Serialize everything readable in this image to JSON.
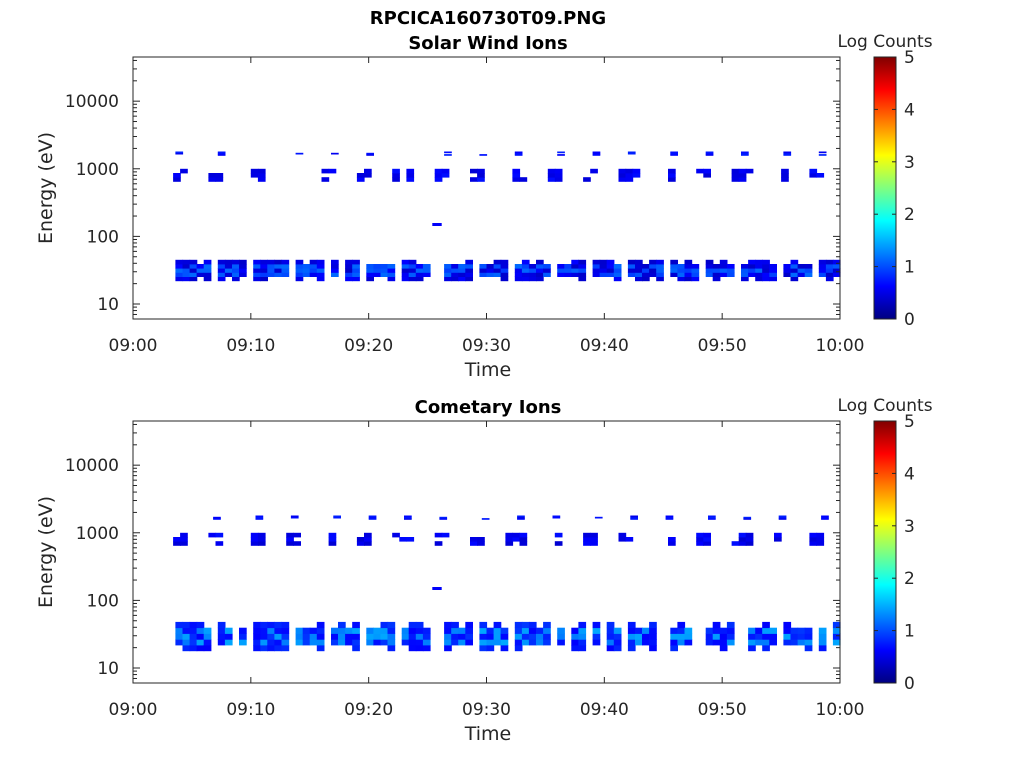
{
  "figure_title": "RPCICA160730T09.PNG",
  "chart_data": [
    {
      "type": "heatmap",
      "title": "Solar Wind Ions",
      "xlabel": "Time",
      "ylabel": "Energy (eV)",
      "xlim_minutes": [
        0,
        60
      ],
      "x_ticks": [
        "09:00",
        "09:10",
        "09:20",
        "09:30",
        "09:40",
        "09:50",
        "10:00"
      ],
      "y_scale": "log",
      "ylim": [
        6,
        45000
      ],
      "y_ticks": [
        "10",
        "100",
        "1000",
        "10000"
      ],
      "colorbar": {
        "label": "Log Counts",
        "range": [
          0,
          5
        ],
        "ticks": [
          "0",
          "1",
          "2",
          "3",
          "4",
          "5"
        ]
      },
      "bands": [
        {
          "name": "",
          "e_lo": 22,
          "e_hi": 45,
          "start": 3.6,
          "end": 59.6,
          "base": 0.35,
          "peak": 1.15
        },
        {
          "name": "",
          "e_lo": 650,
          "e_hi": 1000,
          "start": 2.8,
          "end": 59.2,
          "base": 0.4,
          "peak": 0.95
        },
        {
          "name": "",
          "e_lo": 1580,
          "e_hi": 1800,
          "start": 3.6,
          "end": 59.2,
          "base": 0.5,
          "peak": 0.7
        }
      ],
      "spots": [
        {
          "t": 25.8,
          "e": 150,
          "value": 0.6
        }
      ]
    },
    {
      "type": "heatmap",
      "title": "Cometary Ions",
      "xlabel": "Time",
      "ylabel": "Energy (eV)",
      "xlim_minutes": [
        0,
        60
      ],
      "x_ticks": [
        "09:00",
        "09:10",
        "09:20",
        "09:30",
        "09:40",
        "09:50",
        "10:00"
      ],
      "y_scale": "log",
      "ylim": [
        6,
        45000
      ],
      "y_ticks": [
        "10",
        "100",
        "1000",
        "10000"
      ],
      "colorbar": {
        "label": "Log Counts",
        "range": [
          0,
          5
        ],
        "ticks": [
          "0",
          "1",
          "2",
          "3",
          "4",
          "5"
        ]
      },
      "bands": [
        {
          "name": "",
          "e_lo": 18,
          "e_hi": 48,
          "start": 3.6,
          "end": 59.6,
          "base": 0.6,
          "peak": 1.45
        },
        {
          "name": "",
          "e_lo": 650,
          "e_hi": 1000,
          "start": 2.8,
          "end": 59.2,
          "base": 0.4,
          "peak": 0.95
        },
        {
          "name": "",
          "e_lo": 1580,
          "e_hi": 1800,
          "start": 6.8,
          "end": 59.2,
          "base": 0.5,
          "peak": 0.75
        }
      ],
      "spots": [
        {
          "t": 25.8,
          "e": 150,
          "value": 0.6
        }
      ]
    }
  ]
}
